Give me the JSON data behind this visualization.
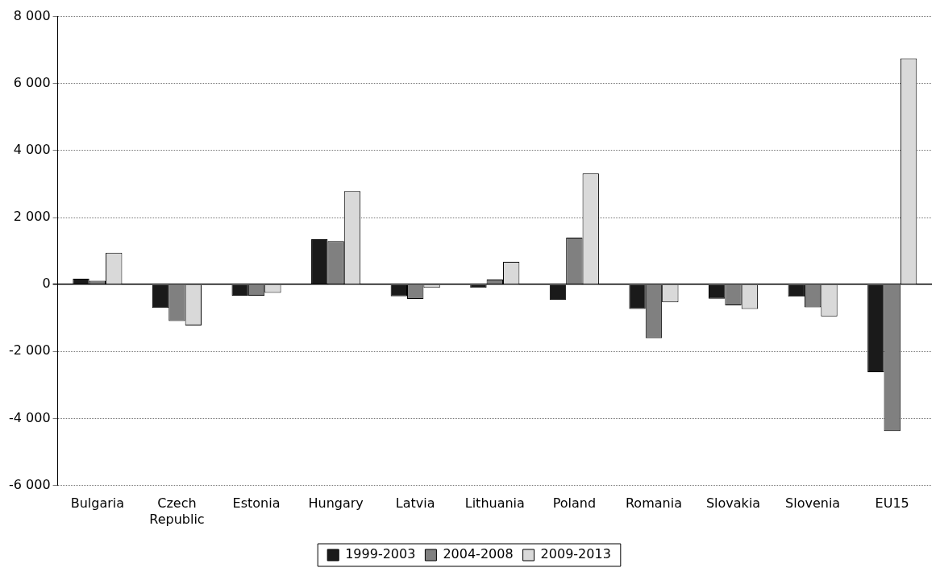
{
  "chart_data": {
    "type": "bar",
    "categories": [
      "Bulgaria",
      "Czech Republic",
      "Estonia",
      "Hungary",
      "Latvia",
      "Lithuania",
      "Poland",
      "Romania",
      "Slovakia",
      "Slovenia",
      "EU15"
    ],
    "series": [
      {
        "name": "1999-2003",
        "color": "#1a1a1a",
        "values": [
          170,
          -700,
          -330,
          1350,
          -350,
          -100,
          -450,
          -730,
          -420,
          -360,
          -2620
        ]
      },
      {
        "name": "2004-2008",
        "color": "#808080",
        "values": [
          110,
          -1090,
          -330,
          1300,
          -430,
          150,
          1400,
          -1600,
          -620,
          -680,
          -4380
        ]
      },
      {
        "name": "2009-2013",
        "color": "#d9d9d9",
        "values": [
          950,
          -1220,
          -250,
          2790,
          -100,
          680,
          3320,
          -530,
          -730,
          -950,
          6750
        ]
      }
    ],
    "ylim": [
      -6000,
      8000
    ],
    "yticks": [
      {
        "value": -6000,
        "label": "-6 000"
      },
      {
        "value": -4000,
        "label": "-4 000"
      },
      {
        "value": -2000,
        "label": "-2 000"
      },
      0,
      {
        "value": 2000,
        "label": "2 000"
      },
      {
        "value": 4000,
        "label": "4 000"
      },
      {
        "value": 6000,
        "label": "6 000"
      },
      {
        "value": 8000,
        "label": "8 000"
      }
    ],
    "grid": "y",
    "legend": "bottom"
  }
}
